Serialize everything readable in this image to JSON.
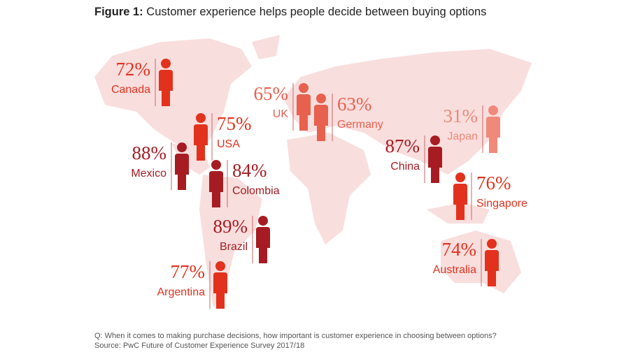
{
  "title": {
    "label": "Figure 1:",
    "text": "Customer experience helps people decide between buying options"
  },
  "countries": [
    {
      "name": "Canada",
      "value_label": "72%",
      "color": "#e2321d"
    },
    {
      "name": "USA",
      "value_label": "75%",
      "color": "#e2321d"
    },
    {
      "name": "Mexico",
      "value_label": "88%",
      "color": "#a61c22"
    },
    {
      "name": "Colombia",
      "value_label": "84%",
      "color": "#a61c22"
    },
    {
      "name": "Brazil",
      "value_label": "89%",
      "color": "#a61c22"
    },
    {
      "name": "Argentina",
      "value_label": "77%",
      "color": "#e2321d"
    },
    {
      "name": "UK",
      "value_label": "65%",
      "color": "#e8604e"
    },
    {
      "name": "Germany",
      "value_label": "63%",
      "color": "#e8604e"
    },
    {
      "name": "Japan",
      "value_label": "31%",
      "color": "#f0897a"
    },
    {
      "name": "China",
      "value_label": "87%",
      "color": "#a61c22"
    },
    {
      "name": "Singapore",
      "value_label": "76%",
      "color": "#e2321d"
    },
    {
      "name": "Australia",
      "value_label": "74%",
      "color": "#e2321d"
    }
  ],
  "footnotes": [
    "Q: When it comes to making purchase decisions, how important is customer experience in choosing between options?",
    "Source: PwC Future of Customer Experience Survey 2017/18"
  ]
}
